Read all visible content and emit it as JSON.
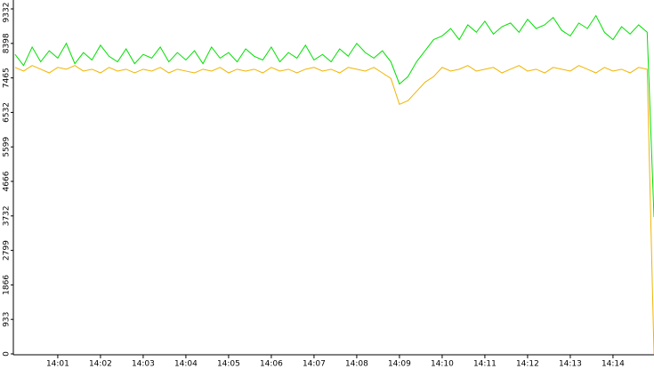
{
  "chart_data": {
    "type": "line",
    "x": [
      840,
      840.2,
      840.4,
      840.6,
      840.8,
      841,
      841.2,
      841.4,
      841.6,
      841.8,
      842,
      842.2,
      842.4,
      842.6,
      842.8,
      843,
      843.2,
      843.4,
      843.6,
      843.8,
      844,
      844.2,
      844.4,
      844.6,
      844.8,
      845,
      845.2,
      845.4,
      845.6,
      845.8,
      846,
      846.2,
      846.4,
      846.6,
      846.8,
      847,
      847.2,
      847.4,
      847.6,
      847.8,
      848,
      848.2,
      848.4,
      848.6,
      848.8,
      849,
      849.2,
      849.4,
      849.6,
      849.8,
      850,
      850.2,
      850.4,
      850.6,
      850.8,
      851,
      851.2,
      851.4,
      851.6,
      851.8,
      852,
      852.2,
      852.4,
      852.6,
      852.8,
      853,
      853.2,
      853.4,
      853.6,
      853.8,
      854,
      854.2,
      854.4,
      854.6,
      854.8,
      854.96
    ],
    "series": [
      {
        "color": "#00e000",
        "values": [
          8100,
          7800,
          8300,
          7900,
          8200,
          8000,
          8400,
          7850,
          8150,
          7950,
          8350,
          8050,
          7900,
          8250,
          7850,
          8100,
          8000,
          8300,
          7900,
          8150,
          7950,
          8200,
          7850,
          8300,
          8000,
          8150,
          7900,
          8250,
          8050,
          7950,
          8300,
          7900,
          8150,
          8000,
          8350,
          7950,
          8100,
          7900,
          8250,
          8050,
          8400,
          8150,
          8000,
          8200,
          7900,
          7300,
          7500,
          7900,
          8200,
          8500,
          8600,
          8800,
          8500,
          8900,
          8700,
          9000,
          8650,
          8850,
          8950,
          8700,
          9050,
          8800,
          8900,
          9100,
          8750,
          8600,
          8950,
          8800,
          9150,
          8700,
          8500,
          8850,
          8650,
          8900,
          8700,
          3700
        ]
      },
      {
        "color": "#f0b400",
        "values": [
          7750,
          7650,
          7800,
          7700,
          7600,
          7750,
          7700,
          7800,
          7650,
          7700,
          7600,
          7750,
          7650,
          7700,
          7600,
          7700,
          7650,
          7750,
          7600,
          7700,
          7650,
          7600,
          7700,
          7650,
          7750,
          7600,
          7700,
          7650,
          7700,
          7600,
          7750,
          7650,
          7700,
          7600,
          7700,
          7750,
          7650,
          7700,
          7600,
          7750,
          7700,
          7650,
          7750,
          7600,
          7450,
          6750,
          6850,
          7100,
          7350,
          7500,
          7750,
          7650,
          7700,
          7800,
          7650,
          7700,
          7750,
          7600,
          7700,
          7800,
          7650,
          7700,
          7600,
          7750,
          7700,
          7650,
          7800,
          7700,
          7600,
          7750,
          7650,
          7700,
          7600,
          7750,
          7700,
          0
        ]
      }
    ],
    "xlim": [
      839.96,
      854.96
    ],
    "xticks": [
      {
        "value": 841,
        "label": "14:01"
      },
      {
        "value": 842,
        "label": "14:02"
      },
      {
        "value": 843,
        "label": "14:03"
      },
      {
        "value": 844,
        "label": "14:04"
      },
      {
        "value": 845,
        "label": "14:05"
      },
      {
        "value": 846,
        "label": "14:06"
      },
      {
        "value": 847,
        "label": "14:07"
      },
      {
        "value": 848,
        "label": "14:08"
      },
      {
        "value": 849,
        "label": "14:09"
      },
      {
        "value": 850,
        "label": "14:10"
      },
      {
        "value": 851,
        "label": "14:11"
      },
      {
        "value": 852,
        "label": "14:12"
      },
      {
        "value": 853,
        "label": "14:13"
      },
      {
        "value": 854,
        "label": "14:14"
      }
    ],
    "ylim": [
      0,
      9332
    ],
    "yticks": [
      0,
      933,
      1866,
      2799,
      3732,
      4666,
      5599,
      6532,
      7465,
      8398,
      9332
    ]
  }
}
